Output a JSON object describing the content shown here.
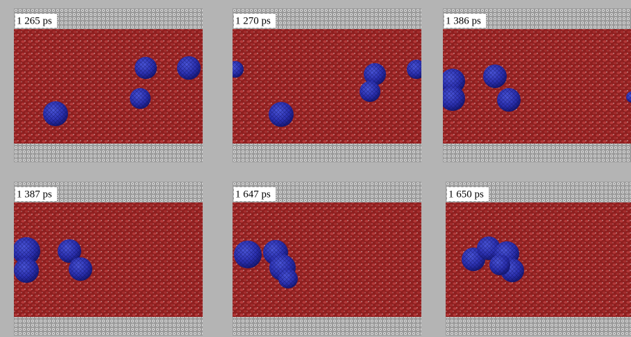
{
  "panels": [
    {
      "label": "1 265 ps"
    },
    {
      "label": "1 270 ps"
    },
    {
      "label": "1 386 ps"
    },
    {
      "label": "1 387 ps"
    },
    {
      "label": "1 647 ps"
    },
    {
      "label": "1 650 ps"
    }
  ]
}
